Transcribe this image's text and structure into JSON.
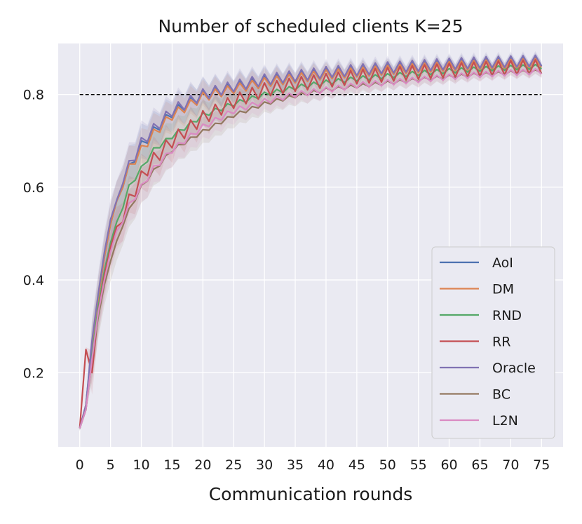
{
  "chart_data": {
    "type": "line",
    "title": "Number of scheduled clients K=25",
    "xlabel": "Communication rounds",
    "ylabel": "",
    "xlim": [
      -3.5,
      78.5
    ],
    "ylim": [
      0.04,
      0.91
    ],
    "xticks": [
      0,
      5,
      10,
      15,
      20,
      25,
      30,
      35,
      40,
      45,
      50,
      55,
      60,
      65,
      70,
      75
    ],
    "yticks": [
      0.2,
      0.4,
      0.6,
      0.8
    ],
    "ytick_labels": [
      "0.2",
      "0.4",
      "0.6",
      "0.8"
    ],
    "grid": true,
    "legend_position": "lower-right",
    "reference_line": {
      "y": 0.8,
      "x_range": [
        0,
        75
      ],
      "style": "dashed",
      "color": "#000000"
    },
    "series": [
      {
        "name": "AoI",
        "color": "#4c72b0",
        "x": [
          0,
          1,
          2,
          3,
          4,
          5,
          6,
          7,
          8,
          10,
          12,
          15,
          20,
          25,
          30,
          35,
          40,
          45,
          50,
          55,
          60,
          65,
          70,
          75
        ],
        "values": [
          0.08,
          0.13,
          0.26,
          0.36,
          0.45,
          0.52,
          0.56,
          0.61,
          0.64,
          0.69,
          0.72,
          0.76,
          0.8,
          0.815,
          0.83,
          0.838,
          0.845,
          0.85,
          0.855,
          0.86,
          0.864,
          0.867,
          0.869,
          0.872
        ],
        "oscillation": 0.01
      },
      {
        "name": "DM",
        "color": "#dd8452",
        "x": [
          0,
          1,
          2,
          3,
          4,
          5,
          6,
          7,
          8,
          10,
          12,
          15,
          20,
          25,
          30,
          35,
          40,
          45,
          50,
          55,
          60,
          65,
          70,
          75
        ],
        "values": [
          0.08,
          0.13,
          0.26,
          0.36,
          0.45,
          0.52,
          0.56,
          0.61,
          0.64,
          0.68,
          0.715,
          0.755,
          0.795,
          0.812,
          0.826,
          0.835,
          0.843,
          0.848,
          0.853,
          0.857,
          0.861,
          0.864,
          0.866,
          0.868
        ],
        "oscillation": 0.01
      },
      {
        "name": "RND",
        "color": "#55a868",
        "x": [
          0,
          1,
          2,
          3,
          4,
          5,
          6,
          7,
          8,
          10,
          12,
          15,
          20,
          25,
          30,
          35,
          40,
          45,
          50,
          55,
          60,
          65,
          70,
          75
        ],
        "values": [
          0.08,
          0.12,
          0.24,
          0.34,
          0.42,
          0.48,
          0.52,
          0.56,
          0.6,
          0.64,
          0.68,
          0.71,
          0.755,
          0.78,
          0.8,
          0.815,
          0.826,
          0.834,
          0.84,
          0.846,
          0.851,
          0.855,
          0.858,
          0.86
        ],
        "oscillation": 0.005
      },
      {
        "name": "RR",
        "color": "#c44e52",
        "x": [
          0,
          1,
          2,
          3,
          4,
          5,
          6,
          7,
          8,
          10,
          12,
          15,
          20,
          25,
          30,
          35,
          40,
          45,
          50,
          55,
          60,
          65,
          70,
          75
        ],
        "values": [
          0.08,
          0.25,
          0.2,
          0.33,
          0.41,
          0.47,
          0.5,
          0.54,
          0.57,
          0.62,
          0.66,
          0.7,
          0.75,
          0.785,
          0.81,
          0.822,
          0.83,
          0.838,
          0.843,
          0.848,
          0.852,
          0.855,
          0.858,
          0.86
        ],
        "oscillation": 0.015
      },
      {
        "name": "Oracle",
        "color": "#8172b3",
        "x": [
          0,
          1,
          2,
          3,
          4,
          5,
          6,
          7,
          8,
          10,
          12,
          15,
          20,
          25,
          30,
          35,
          40,
          45,
          50,
          55,
          60,
          65,
          70,
          75
        ],
        "values": [
          0.08,
          0.13,
          0.27,
          0.37,
          0.46,
          0.53,
          0.56,
          0.62,
          0.645,
          0.695,
          0.725,
          0.765,
          0.8,
          0.818,
          0.832,
          0.84,
          0.848,
          0.853,
          0.858,
          0.862,
          0.866,
          0.869,
          0.871,
          0.873
        ],
        "oscillation": 0.012
      },
      {
        "name": "BC",
        "color": "#937860",
        "x": [
          0,
          1,
          2,
          3,
          4,
          5,
          6,
          7,
          8,
          10,
          12,
          15,
          20,
          25,
          30,
          35,
          40,
          45,
          50,
          55,
          60,
          65,
          70,
          75
        ],
        "values": [
          0.08,
          0.12,
          0.23,
          0.32,
          0.39,
          0.44,
          0.48,
          0.52,
          0.55,
          0.6,
          0.635,
          0.68,
          0.72,
          0.755,
          0.78,
          0.797,
          0.81,
          0.818,
          0.825,
          0.832,
          0.838,
          0.843,
          0.847,
          0.85
        ],
        "oscillation": 0.004
      },
      {
        "name": "L2N",
        "color": "#da8bc3",
        "x": [
          0,
          1,
          2,
          3,
          4,
          5,
          6,
          7,
          8,
          10,
          12,
          15,
          20,
          25,
          30,
          35,
          40,
          45,
          50,
          55,
          60,
          65,
          70,
          75
        ],
        "values": [
          0.08,
          0.12,
          0.23,
          0.33,
          0.4,
          0.46,
          0.5,
          0.53,
          0.56,
          0.6,
          0.64,
          0.68,
          0.73,
          0.765,
          0.785,
          0.8,
          0.81,
          0.82,
          0.826,
          0.832,
          0.838,
          0.843,
          0.847,
          0.85
        ],
        "oscillation": 0.006
      }
    ]
  }
}
